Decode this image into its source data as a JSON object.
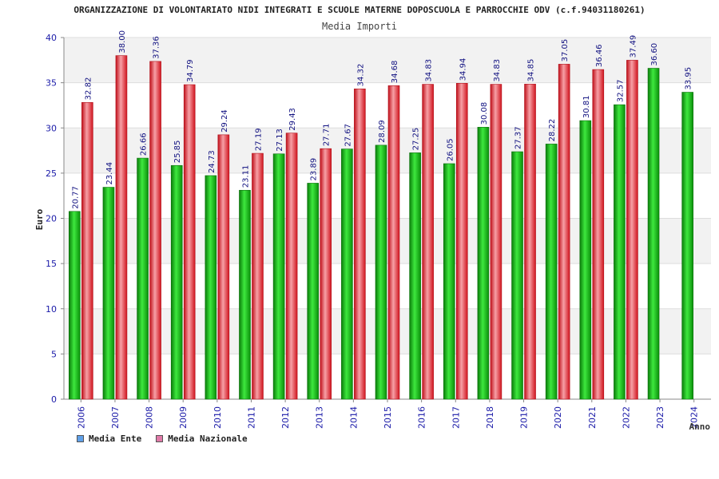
{
  "chart_data": {
    "type": "bar",
    "title": "ORGANIZZAZIONE DI VOLONTARIATO NIDI INTEGRATI E SCUOLE MATERNE DOPOSCUOLA E PARROCCHIE ODV (c.f.94031180261)",
    "subtitle": "Media Importi",
    "xlabel": "Anno",
    "ylabel": "Euro",
    "ylim": [
      0,
      40
    ],
    "yticks": [
      0,
      5,
      10,
      15,
      20,
      25,
      30,
      35,
      40
    ],
    "categories": [
      "2006",
      "2007",
      "2008",
      "2009",
      "2010",
      "2011",
      "2012",
      "2013",
      "2014",
      "2015",
      "2016",
      "2017",
      "2018",
      "2019",
      "2020",
      "2021",
      "2022",
      "2023",
      "2024"
    ],
    "series": [
      {
        "name": "Media Ente",
        "color": "#12b012",
        "values": [
          20.77,
          23.44,
          26.66,
          25.85,
          24.73,
          23.11,
          27.13,
          23.89,
          27.67,
          28.09,
          27.25,
          26.05,
          30.08,
          27.37,
          28.22,
          30.81,
          32.57,
          36.6,
          33.95
        ],
        "labels": [
          "20.77",
          "23.44",
          "26.66",
          "25.85",
          "24.73",
          "23.11",
          "27.13",
          "23.89",
          "27.67",
          "28.09",
          "27.25",
          "26.05",
          "30.08",
          "27.37",
          "28.22",
          "30.81",
          "32.57",
          "36.60",
          "33.95"
        ]
      },
      {
        "name": "Media Nazionale",
        "color": "#e8202a",
        "values": [
          32.82,
          38.0,
          37.36,
          34.79,
          29.24,
          27.19,
          29.43,
          27.71,
          34.32,
          34.68,
          34.83,
          34.94,
          34.83,
          34.85,
          37.05,
          36.46,
          37.49,
          null,
          null
        ],
        "labels": [
          "32.82",
          "38.00",
          "37.36",
          "34.79",
          "29.24",
          "27.19",
          "29.43",
          "27.71",
          "34.32",
          "34.68",
          "34.83",
          "34.94",
          "34.83",
          "34.85",
          "37.05",
          "36.46",
          "37.49",
          null,
          null
        ]
      }
    ],
    "legend": [
      {
        "label": "Media Ente",
        "color": "#5fa0e8"
      },
      {
        "label": "Media Nazionale",
        "color": "#e07aa8"
      }
    ],
    "legend_position": "bottom-left",
    "grid": true
  }
}
